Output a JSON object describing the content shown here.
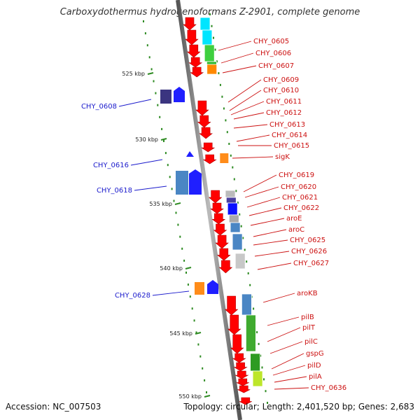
{
  "title": "Carboxydothermus hydrogenoformans Z-2901, complete genome",
  "footer": {
    "accession": "Accession: NC_007503",
    "summary": "Topology: circular; Length: 2,401,520 bp; Genes: 2,683"
  },
  "colors": {
    "backbone": "#808080",
    "forward_gene": "#ff0000",
    "reverse_gene": "#1f1fff",
    "forward_label": "#cc1111",
    "reverse_label": "#1a1acc",
    "tick": "#2e8b22"
  },
  "scale": {
    "start_kbp": 521,
    "end_kbp": 551,
    "ticks": [
      "525 kbp",
      "530 kbp",
      "535 kbp",
      "540 kbp",
      "545 kbp",
      "550 kbp"
    ]
  },
  "forward_labels": [
    "CHY_0605",
    "CHY_0606",
    "CHY_0607",
    "CHY_0609",
    "CHY_0610",
    "CHY_0611",
    "CHY_0612",
    "CHY_0613",
    "CHY_0614",
    "CHY_0615",
    "sigK",
    "CHY_0619",
    "CHY_0620",
    "CHY_0621",
    "CHY_0622",
    "aroE",
    "aroC",
    "CHY_0625",
    "CHY_0626",
    "CHY_0627",
    "aroKB",
    "pilB",
    "pilT",
    "pilC",
    "gspG",
    "pilD",
    "pilA",
    "CHY_0636"
  ],
  "reverse_labels": [
    "CHY_0608",
    "CHY_0616",
    "CHY_0618",
    "CHY_0628"
  ]
}
